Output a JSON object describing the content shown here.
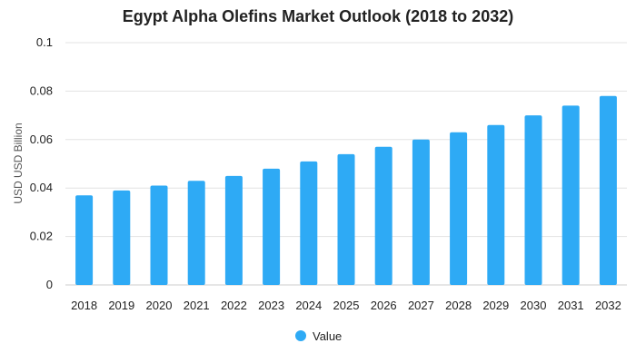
{
  "chart_data": {
    "type": "bar",
    "title": "Egypt Alpha Olefins Market Outlook (2018 to 2032)",
    "xlabel": "",
    "ylabel": "USD USD Billion",
    "categories": [
      "2018",
      "2019",
      "2020",
      "2021",
      "2022",
      "2023",
      "2024",
      "2025",
      "2026",
      "2027",
      "2028",
      "2029",
      "2030",
      "2031",
      "2032"
    ],
    "series": [
      {
        "name": "Value",
        "values": [
          0.037,
          0.039,
          0.041,
          0.043,
          0.045,
          0.048,
          0.051,
          0.054,
          0.057,
          0.06,
          0.063,
          0.066,
          0.07,
          0.074,
          0.078
        ],
        "color": "#2eaaf5"
      }
    ],
    "ylim": [
      0,
      0.1
    ],
    "yticks": [
      "0",
      "0.02",
      "0.04",
      "0.06",
      "0.08",
      "0.1"
    ],
    "grid": true,
    "legend_position": "bottom"
  }
}
